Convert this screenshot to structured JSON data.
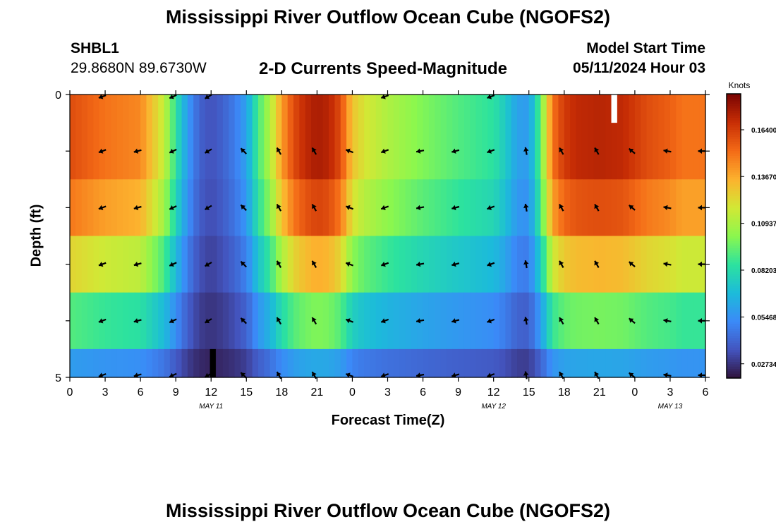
{
  "header": {
    "title": "Mississippi River Outflow Ocean Cube (NGOFS2)",
    "title_repeat": "Mississippi River Outflow Ocean Cube (NGOFS2)",
    "station": "SHBL1",
    "coords": "29.8680N  89.6730W",
    "variable": "2-D Currents Speed-Magnitude",
    "model_start_label": "Model Start Time",
    "model_start_value": "05/11/2024 Hour 03"
  },
  "chart_data": {
    "type": "heatmap",
    "title": "2-D Currents Speed-Magnitude",
    "xlabel": "Forecast Time(Z)",
    "ylabel": "Depth (ft)",
    "x_ticks": [
      "0",
      "3",
      "6",
      "9",
      "12",
      "15",
      "18",
      "21",
      "0",
      "3",
      "6",
      "9",
      "12",
      "15",
      "18",
      "21",
      "0",
      "3",
      "6"
    ],
    "x_tick_hours": [
      0,
      3,
      6,
      9,
      12,
      15,
      18,
      21,
      24,
      27,
      30,
      33,
      36,
      39,
      42,
      45,
      48,
      51,
      54
    ],
    "xlim_hours": [
      0,
      54
    ],
    "y_ticks": [
      "0",
      "5"
    ],
    "ylim_ft": [
      0,
      5
    ],
    "depth_levels_ft": [
      0,
      1,
      2,
      3,
      4,
      5
    ],
    "date_labels": [
      {
        "text": "MAY 11",
        "hour": 12
      },
      {
        "text": "MAY 12",
        "hour": 36
      },
      {
        "text": "MAY 13",
        "hour": 51
      }
    ],
    "colorbar": {
      "unit": "Knots",
      "tick_labels": [
        "0.16400",
        "0.13670",
        "0.10937",
        "0.08203",
        "0.05468",
        "0.02734"
      ],
      "tick_values": [
        0.164,
        0.1367,
        0.10937,
        0.08203,
        0.05468,
        0.02734
      ],
      "range": [
        0.019,
        0.185
      ],
      "colormap": "turbo"
    },
    "speed_profile_hours": [
      0,
      3,
      6,
      8,
      9,
      10,
      11,
      12,
      13,
      14,
      15,
      16,
      17,
      18,
      19,
      20,
      21,
      22,
      23,
      24,
      25,
      27,
      30,
      33,
      36,
      37,
      38,
      39,
      40,
      41,
      42,
      43,
      45,
      47,
      48,
      49,
      51,
      52,
      54
    ],
    "speed_profile_surface": [
      0.16,
      0.15,
      0.145,
      0.115,
      0.085,
      0.058,
      0.04,
      0.035,
      0.04,
      0.048,
      0.06,
      0.09,
      0.11,
      0.14,
      0.16,
      0.17,
      0.175,
      0.172,
      0.16,
      0.13,
      0.12,
      0.11,
      0.1,
      0.092,
      0.085,
      0.075,
      0.06,
      0.058,
      0.095,
      0.15,
      0.165,
      0.17,
      0.172,
      0.17,
      0.165,
      0.16,
      0.155,
      0.15,
      0.15
    ],
    "layer_factor": [
      1.0,
      1.0,
      0.92,
      0.75,
      0.52,
      0.28
    ],
    "arrow_hours": [
      3,
      6,
      9,
      12,
      15,
      18,
      21,
      24,
      27,
      30,
      33,
      36,
      39,
      42,
      45,
      48,
      51,
      54
    ],
    "arrow_rows_ft": [
      0,
      1,
      2,
      3,
      4,
      5
    ],
    "arrow_directions_deg": [
      200,
      195,
      205,
      210,
      135,
      120,
      120,
      160,
      200,
      190,
      195,
      200,
      100,
      120,
      120,
      140,
      170,
      180
    ],
    "surface_arrow_hours": [
      3,
      9,
      12,
      27,
      36
    ],
    "missing_cells": [
      {
        "hour_from": 46,
        "hour_to": 46.5,
        "depth_from": 0,
        "depth_to": 0.5
      }
    ],
    "dark_cells": [
      {
        "hour_from": 11.9,
        "hour_to": 12.4,
        "depth_from": 4.5,
        "depth_to": 5
      }
    ]
  }
}
